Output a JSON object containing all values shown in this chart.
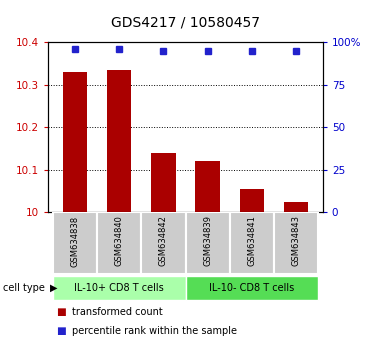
{
  "title": "GDS4217 / 10580457",
  "samples": [
    "GSM634838",
    "GSM634840",
    "GSM634842",
    "GSM634839",
    "GSM634841",
    "GSM634843"
  ],
  "bar_values": [
    10.33,
    10.335,
    10.14,
    10.12,
    10.055,
    10.025
  ],
  "percentile_values": [
    96,
    96,
    95,
    95,
    95,
    95
  ],
  "bar_color": "#aa0000",
  "dot_color": "#2222cc",
  "ylim_left": [
    10,
    10.4
  ],
  "ylim_right": [
    0,
    100
  ],
  "yticks_left": [
    10,
    10.1,
    10.2,
    10.3,
    10.4
  ],
  "ytick_labels_left": [
    "10",
    "10.1",
    "10.2",
    "10.3",
    "10.4"
  ],
  "yticks_right": [
    0,
    25,
    50,
    75,
    100
  ],
  "ytick_labels_right": [
    "0",
    "25",
    "50",
    "75",
    "100%"
  ],
  "groups": [
    {
      "label": "IL-10+ CD8 T cells",
      "indices": [
        0,
        1,
        2
      ],
      "color": "#aaffaa"
    },
    {
      "label": "IL-10- CD8 T cells",
      "indices": [
        3,
        4,
        5
      ],
      "color": "#55dd55"
    }
  ],
  "legend_items": [
    {
      "color": "#aa0000",
      "label": "transformed count"
    },
    {
      "color": "#2222cc",
      "label": "percentile rank within the sample"
    }
  ],
  "bar_width": 0.55,
  "background_color": "#ffffff",
  "tick_label_color_left": "#cc0000",
  "tick_label_color_right": "#0000cc",
  "title_fontsize": 10,
  "axis_fontsize": 7.5,
  "sample_fontsize": 6,
  "group_fontsize": 7,
  "legend_fontsize": 7
}
